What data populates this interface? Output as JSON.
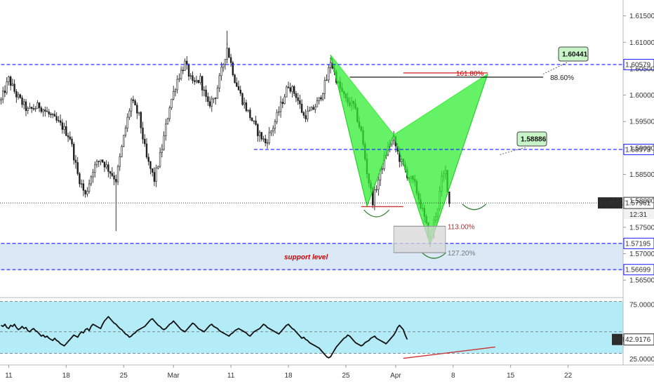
{
  "chart_data": {
    "type": "candlestick",
    "symbol": "EURAUD",
    "timeframe_label": "12:31",
    "price_axis": {
      "ylim": [
        1.5625,
        1.618
      ],
      "ticks": [
        "1.61500",
        "1.61000",
        "1.60500",
        "1.60000",
        "1.59500",
        "1.59000",
        "1.58500",
        "1.58000",
        "1.57500",
        "1.57000",
        "1.56500"
      ],
      "tick_values": [
        1.615,
        1.61,
        1.605,
        1.6,
        1.595,
        1.59,
        1.585,
        1.58,
        1.575,
        1.57,
        1.565
      ]
    },
    "time_axis": {
      "ticks": [
        "11",
        "18",
        "25",
        "Mar",
        "11",
        "18",
        "25",
        "Apr",
        "8",
        "15",
        "22"
      ],
      "tick_index": [
        4,
        34,
        64,
        90,
        120,
        150,
        180,
        206,
        236,
        266,
        296
      ]
    },
    "last_price": {
      "label": "EURAUD",
      "value": "1.57961",
      "num": 1.57961,
      "color": "#000000"
    },
    "levels": [
      {
        "value": 1.60579,
        "label": "1.60579",
        "style": "dashed",
        "color": "#1a1aff",
        "x_from_index": 0
      },
      {
        "value": 1.58973,
        "label": "1.58973",
        "style": "dashed",
        "color": "#1a1aff",
        "x_from_index": 132
      },
      {
        "value": 1.57195,
        "label": "1.57195",
        "style": "dashed",
        "color": "#1a1aff",
        "x_from_index": 0
      },
      {
        "value": 1.56699,
        "label": "1.56699",
        "style": "dashed",
        "color": "#1a1aff",
        "x_from_index": 0
      }
    ],
    "support_zone": {
      "from": 1.56699,
      "to": 1.57195,
      "label": "support level",
      "label_color": "#cc0000",
      "fill": "#dbe8f6"
    },
    "pattern": {
      "type": "bat",
      "color": "#33ee33",
      "points": [
        {
          "idx": 172,
          "price": 1.6076
        },
        {
          "idx": 191,
          "price": 1.579
        },
        {
          "idx": 205,
          "price": 1.5925
        },
        {
          "idx": 224,
          "price": 1.5717
        },
        {
          "idx": 254,
          "price": 1.604
        }
      ]
    },
    "fib_levels": [
      {
        "label": "161.80%",
        "value": 1.6042,
        "color": "#cc0000",
        "from_index": 210,
        "to_index": 254
      },
      {
        "label": "88.60%",
        "value": 1.6034,
        "color": "#000000",
        "from_index": 182,
        "to_index": 283
      },
      {
        "label": "113.00%",
        "value": 1.5752,
        "color": "#999999",
        "from_index": 205,
        "to_index": 232
      },
      {
        "label": "127.20%",
        "value": 1.5702,
        "color": "#999999",
        "from_index": 205,
        "to_index": 232
      }
    ],
    "annotations": [
      {
        "text": "1.60441",
        "target_index": 283,
        "target_price": 1.604
      },
      {
        "text": "1.58886",
        "target_index": 260,
        "target_price": 1.5887
      }
    ],
    "rsi": {
      "label": "RSI",
      "value": "42.9176",
      "ylim": [
        22,
        79
      ],
      "ticks": [
        "75.0000",
        "25.0000"
      ],
      "tick_values": [
        75,
        25
      ],
      "band": [
        30,
        78
      ],
      "hidden_tick_value": 50,
      "values": [
        56,
        55,
        57,
        54,
        53,
        56,
        55,
        57,
        54,
        52,
        53,
        55,
        53,
        54,
        51,
        50,
        52,
        53,
        51,
        50,
        48,
        46,
        47,
        45,
        46,
        44,
        43,
        42,
        44,
        42,
        41,
        39,
        38,
        37,
        39,
        41,
        43,
        45,
        47,
        46,
        45,
        48,
        50,
        49,
        52,
        53,
        51,
        55,
        57,
        56,
        55,
        54,
        53,
        57,
        60,
        62,
        64,
        62,
        60,
        58,
        57,
        55,
        53,
        52,
        50,
        48,
        47,
        45,
        46,
        48,
        49,
        51,
        52,
        53,
        54,
        55,
        57,
        59,
        61,
        62,
        60,
        58,
        56,
        55,
        53,
        52,
        53,
        55,
        57,
        58,
        60,
        58,
        56,
        54,
        52,
        51,
        50,
        52,
        54,
        56,
        58,
        57,
        55,
        53,
        52,
        51,
        50,
        52,
        54,
        56,
        57,
        55,
        54,
        53,
        51,
        50,
        49,
        48,
        47,
        46,
        48,
        49,
        51,
        52,
        53,
        52,
        51,
        50,
        49,
        47,
        46,
        48,
        50,
        51,
        52,
        53,
        55,
        57,
        56,
        54,
        53,
        52,
        51,
        50,
        49,
        48,
        50,
        52,
        54,
        56,
        57,
        55,
        53,
        52,
        50,
        48,
        46,
        44,
        45,
        43,
        42,
        40,
        39,
        38,
        37,
        36,
        35,
        33,
        31,
        29,
        27,
        26,
        27,
        30,
        33,
        36,
        38,
        40,
        42,
        44,
        45,
        47,
        46,
        44,
        42,
        40,
        39,
        38,
        37,
        38,
        40,
        41,
        42,
        44,
        45,
        46,
        44,
        43,
        42,
        41,
        40,
        39,
        41,
        43,
        45,
        47,
        50,
        54,
        56,
        54,
        52,
        47,
        43
      ],
      "divergence_line": {
        "from": [
          210,
          25.5
        ],
        "to": [
          258,
          36
        ]
      },
      "divergence_color": "#cc3333"
    }
  }
}
